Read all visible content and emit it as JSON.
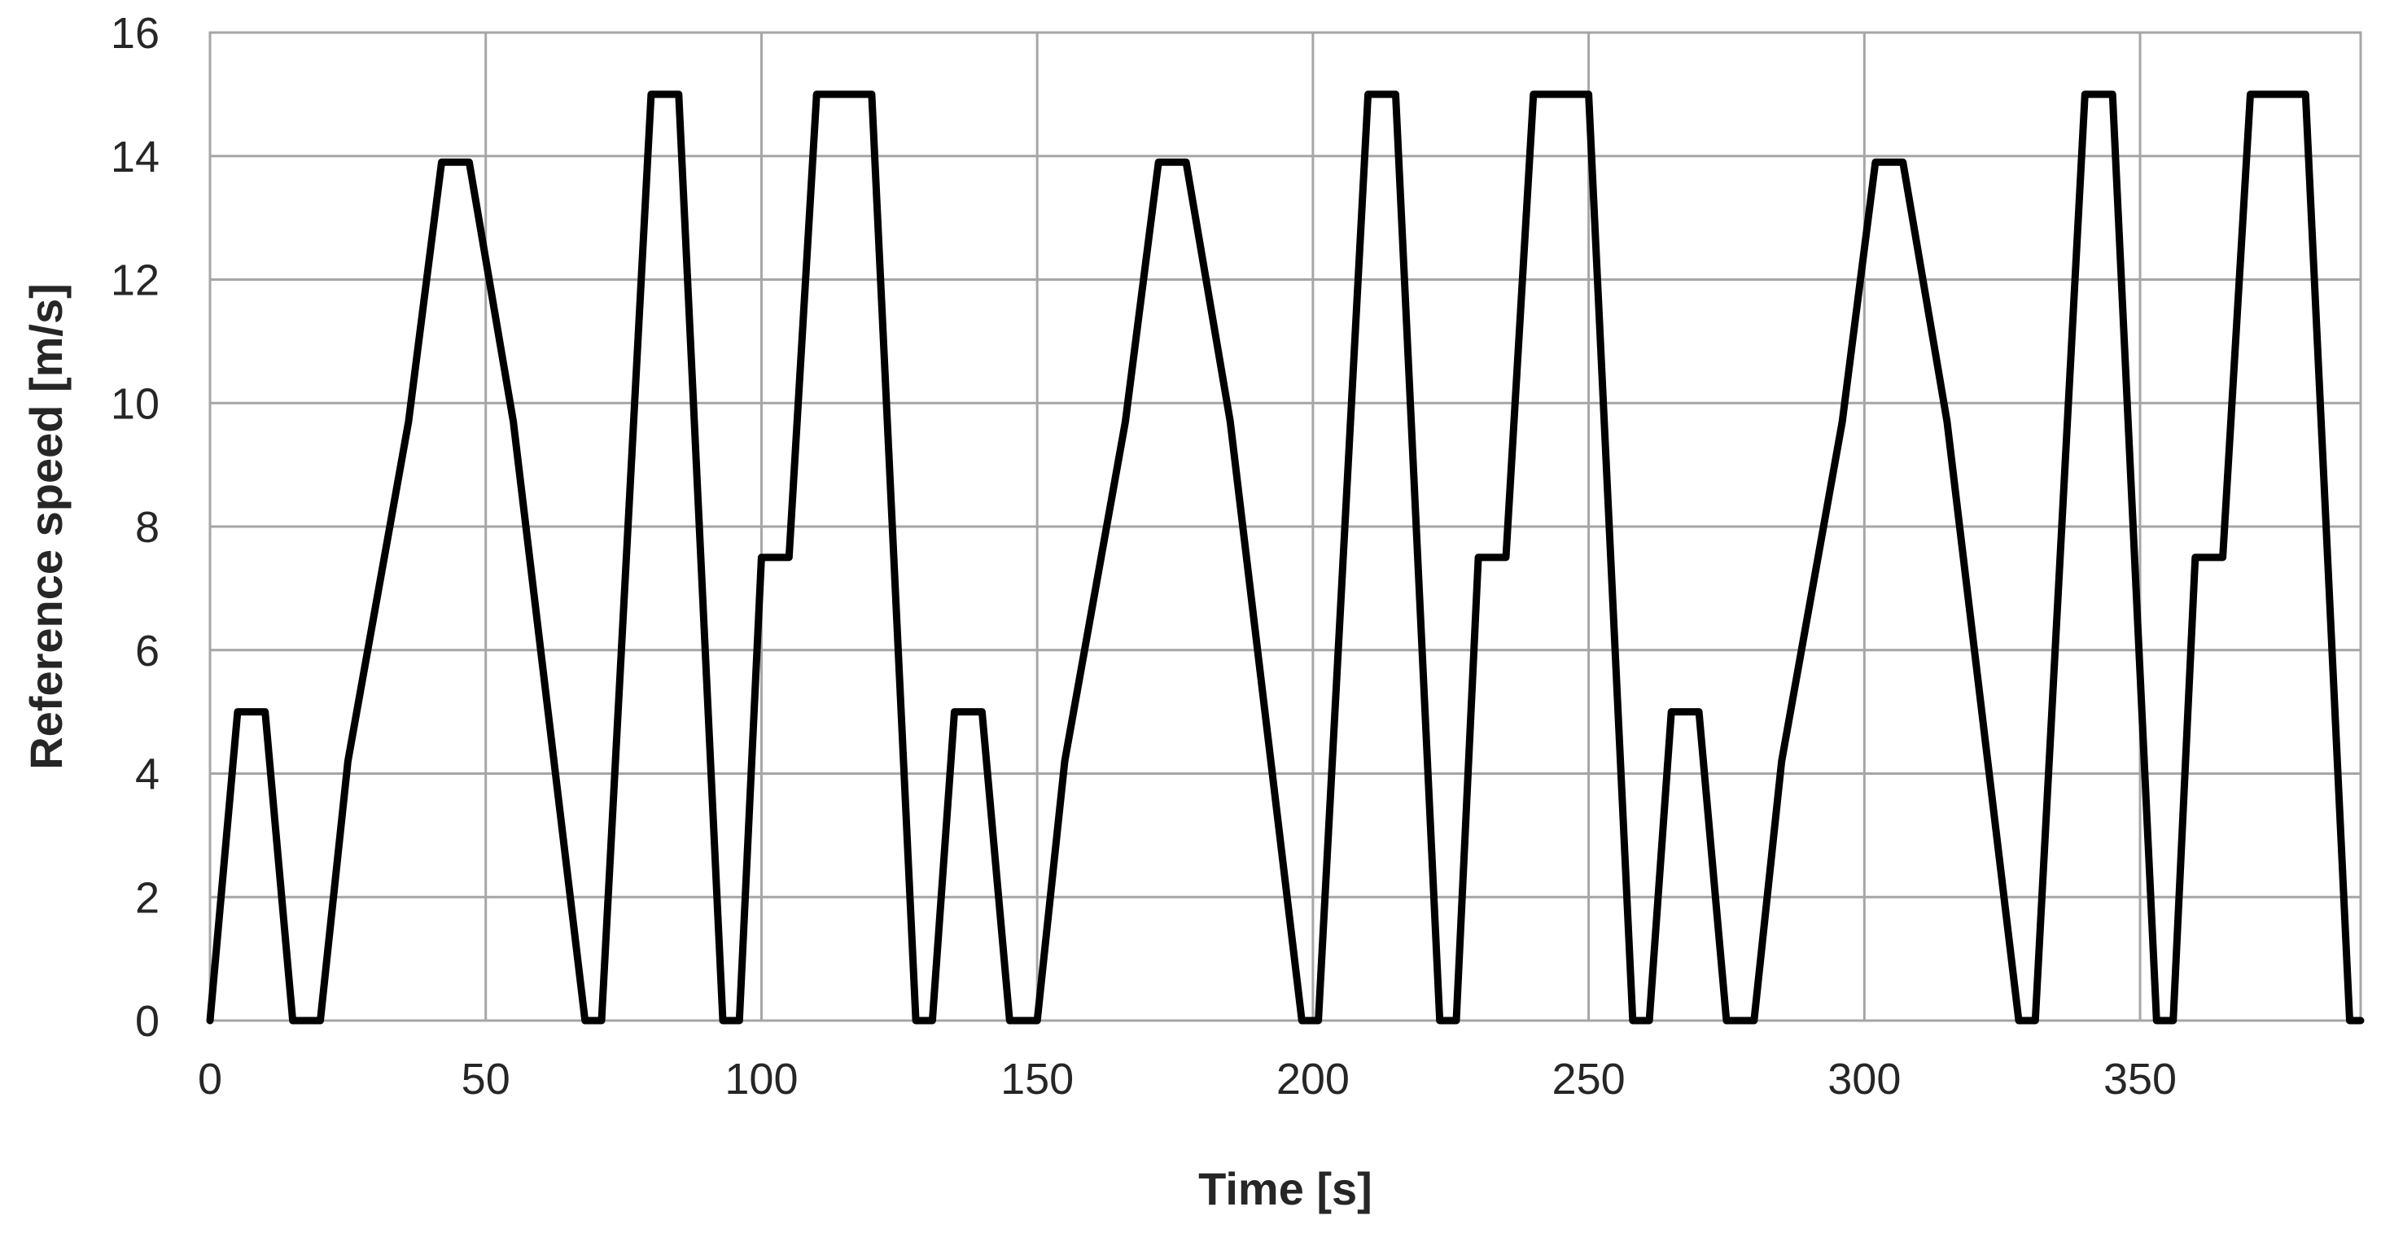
{
  "chart_data": {
    "type": "line",
    "title": "",
    "xlabel": "Time [s]",
    "ylabel": "Reference speed [m/s]",
    "xlim": [
      0,
      390
    ],
    "ylim": [
      0,
      16
    ],
    "x_ticks": [
      0,
      50,
      100,
      150,
      200,
      250,
      300,
      350
    ],
    "y_ticks": [
      0,
      2,
      4,
      6,
      8,
      10,
      12,
      14,
      16
    ],
    "grid": true,
    "legend": "none",
    "line_color": "#000000",
    "grid_color": "#a6a6a6",
    "series": [
      {
        "x": [
          0,
          5,
          10,
          15,
          20,
          25,
          36,
          42,
          47,
          55,
          68,
          71,
          80,
          85,
          93,
          96,
          100,
          105,
          110,
          120,
          128,
          131,
          135,
          140,
          145,
          150,
          155,
          166,
          172,
          177,
          185,
          198,
          201,
          210,
          215,
          223,
          226,
          230,
          235,
          240,
          250,
          258,
          261,
          265,
          270,
          275,
          280,
          285,
          296,
          302,
          307,
          315,
          328,
          331,
          340,
          345,
          353,
          356,
          360,
          365,
          370,
          380,
          388,
          390
        ],
        "y": [
          0,
          5,
          5,
          0,
          0,
          4.2,
          9.7,
          13.9,
          13.9,
          9.7,
          0,
          0,
          15,
          15,
          0,
          0,
          7.5,
          7.5,
          15,
          15,
          0,
          0,
          5,
          5,
          0,
          0,
          4.2,
          9.7,
          13.9,
          13.9,
          9.7,
          0,
          0,
          15,
          15,
          0,
          0,
          7.5,
          7.5,
          15,
          15,
          0,
          0,
          5,
          5,
          0,
          0,
          4.2,
          9.7,
          13.9,
          13.9,
          9.7,
          0,
          0,
          15,
          15,
          0,
          0,
          7.5,
          7.5,
          15,
          15,
          0,
          0
        ]
      }
    ]
  }
}
